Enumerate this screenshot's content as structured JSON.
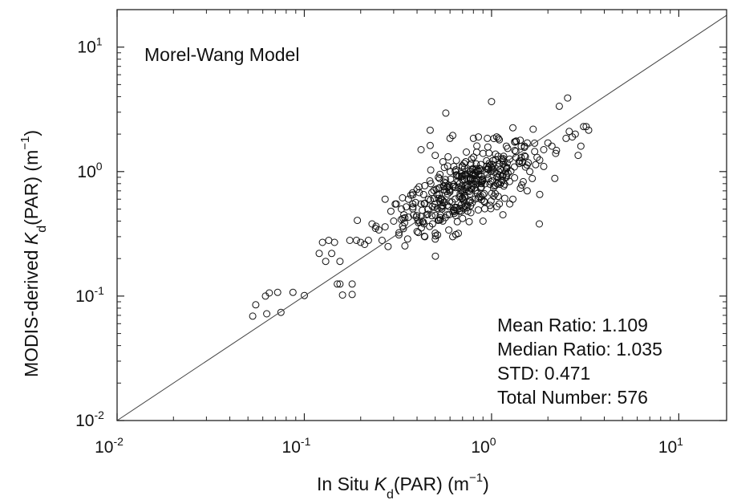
{
  "chart_data": {
    "type": "scatter",
    "title": "Morel-Wang Model",
    "xlabel": {
      "main": "In Situ ",
      "var": "K",
      "sub": "d",
      "paren": "(PAR) (m",
      "exp": "−1",
      "close": ")"
    },
    "ylabel": {
      "main": "MODIS-derived ",
      "var": "K",
      "sub": "d",
      "paren": "(PAR) (m",
      "exp": "−1",
      "close": ")"
    },
    "x_scale": "log",
    "y_scale": "log",
    "xlim": [
      0.01,
      18
    ],
    "ylim": [
      0.01,
      20
    ],
    "x_ticks": [
      {
        "value": 0.01,
        "base": "10",
        "exp": "-2"
      },
      {
        "value": 0.1,
        "base": "10",
        "exp": "-1"
      },
      {
        "value": 1,
        "base": "10",
        "exp": "0"
      },
      {
        "value": 10,
        "base": "10",
        "exp": "1"
      }
    ],
    "y_ticks": [
      {
        "value": 0.01,
        "base": "10",
        "exp": "-2"
      },
      {
        "value": 0.1,
        "base": "10",
        "exp": "-1"
      },
      {
        "value": 1,
        "base": "10",
        "exp": "0"
      },
      {
        "value": 10,
        "base": "10",
        "exp": "1"
      }
    ],
    "reference_line": {
      "label": "1:1",
      "from": [
        0.01,
        0.01
      ],
      "to": [
        18,
        18
      ]
    },
    "stats": [
      "Mean Ratio: 1.109",
      "Median Ratio: 1.035",
      "STD: 0.471",
      "Total Number: 576"
    ],
    "grid": false,
    "marker": "open-circle",
    "cluster": {
      "description": "dense core of points near x=0.75, y=0.75",
      "center": [
        0.75,
        0.75
      ],
      "count": 360,
      "spread_log10": 0.17
    },
    "points": [
      [
        0.053,
        0.069
      ],
      [
        0.055,
        0.085
      ],
      [
        0.062,
        0.1
      ],
      [
        0.065,
        0.106
      ],
      [
        0.063,
        0.072
      ],
      [
        0.072,
        0.107
      ],
      [
        0.075,
        0.074
      ],
      [
        0.087,
        0.107
      ],
      [
        0.1,
        0.101
      ],
      [
        0.12,
        0.22
      ],
      [
        0.125,
        0.27
      ],
      [
        0.13,
        0.19
      ],
      [
        0.135,
        0.28
      ],
      [
        0.14,
        0.22
      ],
      [
        0.145,
        0.27
      ],
      [
        0.15,
        0.125
      ],
      [
        0.155,
        0.125
      ],
      [
        0.16,
        0.102
      ],
      [
        0.155,
        0.19
      ],
      [
        0.175,
        0.28
      ],
      [
        0.18,
        0.103
      ],
      [
        0.18,
        0.125
      ],
      [
        0.19,
        0.28
      ],
      [
        0.2,
        0.27
      ],
      [
        0.21,
        0.26
      ],
      [
        0.22,
        0.28
      ],
      [
        0.23,
        0.38
      ],
      [
        0.24,
        0.35
      ],
      [
        0.25,
        0.34
      ],
      [
        0.26,
        0.28
      ],
      [
        0.27,
        0.6
      ],
      [
        0.28,
        0.25
      ],
      [
        0.3,
        0.4
      ],
      [
        0.32,
        0.31
      ],
      [
        0.33,
        0.5
      ],
      [
        0.35,
        0.52
      ],
      [
        0.36,
        0.43
      ],
      [
        0.38,
        0.65
      ],
      [
        0.4,
        0.33
      ],
      [
        0.42,
        0.55
      ],
      [
        0.44,
        0.3
      ],
      [
        0.45,
        0.45
      ],
      [
        0.42,
        1.5
      ],
      [
        0.47,
        1.62
      ],
      [
        0.47,
        2.15
      ],
      [
        0.5,
        1.35
      ],
      [
        0.53,
        0.95
      ],
      [
        0.55,
        1.2
      ],
      [
        0.6,
        1.85
      ],
      [
        0.62,
        1.95
      ],
      [
        0.57,
        2.95
      ],
      [
        0.5,
        0.32
      ],
      [
        0.58,
        0.45
      ],
      [
        0.62,
        0.3
      ],
      [
        0.8,
        1.85
      ],
      [
        0.85,
        1.9
      ],
      [
        0.9,
        1.4
      ],
      [
        0.95,
        1.85
      ],
      [
        1.0,
        3.65
      ],
      [
        1.1,
        1.8
      ],
      [
        1.2,
        1.6
      ],
      [
        1.3,
        2.25
      ],
      [
        1.35,
        1.3
      ],
      [
        1.4,
        1.2
      ],
      [
        1.5,
        1.6
      ],
      [
        1.55,
        1.7
      ],
      [
        1.6,
        1.0
      ],
      [
        1.65,
        0.88
      ],
      [
        1.55,
        0.7
      ],
      [
        1.45,
        0.78
      ],
      [
        1.8,
        0.38
      ],
      [
        1.9,
        1.5
      ],
      [
        2.0,
        1.7
      ],
      [
        2.2,
        1.4
      ],
      [
        2.3,
        3.35
      ],
      [
        2.55,
        3.9
      ],
      [
        2.5,
        1.85
      ],
      [
        2.6,
        2.1
      ],
      [
        2.7,
        1.9
      ],
      [
        2.8,
        2.0
      ],
      [
        2.9,
        1.35
      ],
      [
        3.0,
        1.6
      ],
      [
        3.1,
        2.3
      ],
      [
        3.2,
        2.3
      ],
      [
        3.3,
        2.15
      ],
      [
        1.25,
        0.55
      ],
      [
        1.3,
        0.6
      ],
      [
        1.15,
        0.45
      ],
      [
        1.1,
        0.55
      ],
      [
        0.9,
        0.4
      ],
      [
        0.7,
        0.42
      ],
      [
        0.52,
        0.9
      ],
      [
        0.48,
        0.68
      ],
      [
        0.46,
        0.6
      ],
      [
        0.44,
        0.77
      ],
      [
        0.4,
        0.72
      ],
      [
        0.38,
        0.55
      ],
      [
        0.36,
        0.6
      ],
      [
        0.34,
        0.45
      ],
      [
        0.31,
        0.55
      ],
      [
        0.29,
        0.48
      ],
      [
        0.27,
        0.36
      ],
      [
        1.7,
        1.45
      ],
      [
        1.75,
        1.3
      ],
      [
        1.9,
        1.1
      ],
      [
        2.1,
        1.6
      ],
      [
        0.95,
        1.05
      ],
      [
        1.05,
        1.25
      ],
      [
        1.2,
        0.9
      ]
    ]
  }
}
